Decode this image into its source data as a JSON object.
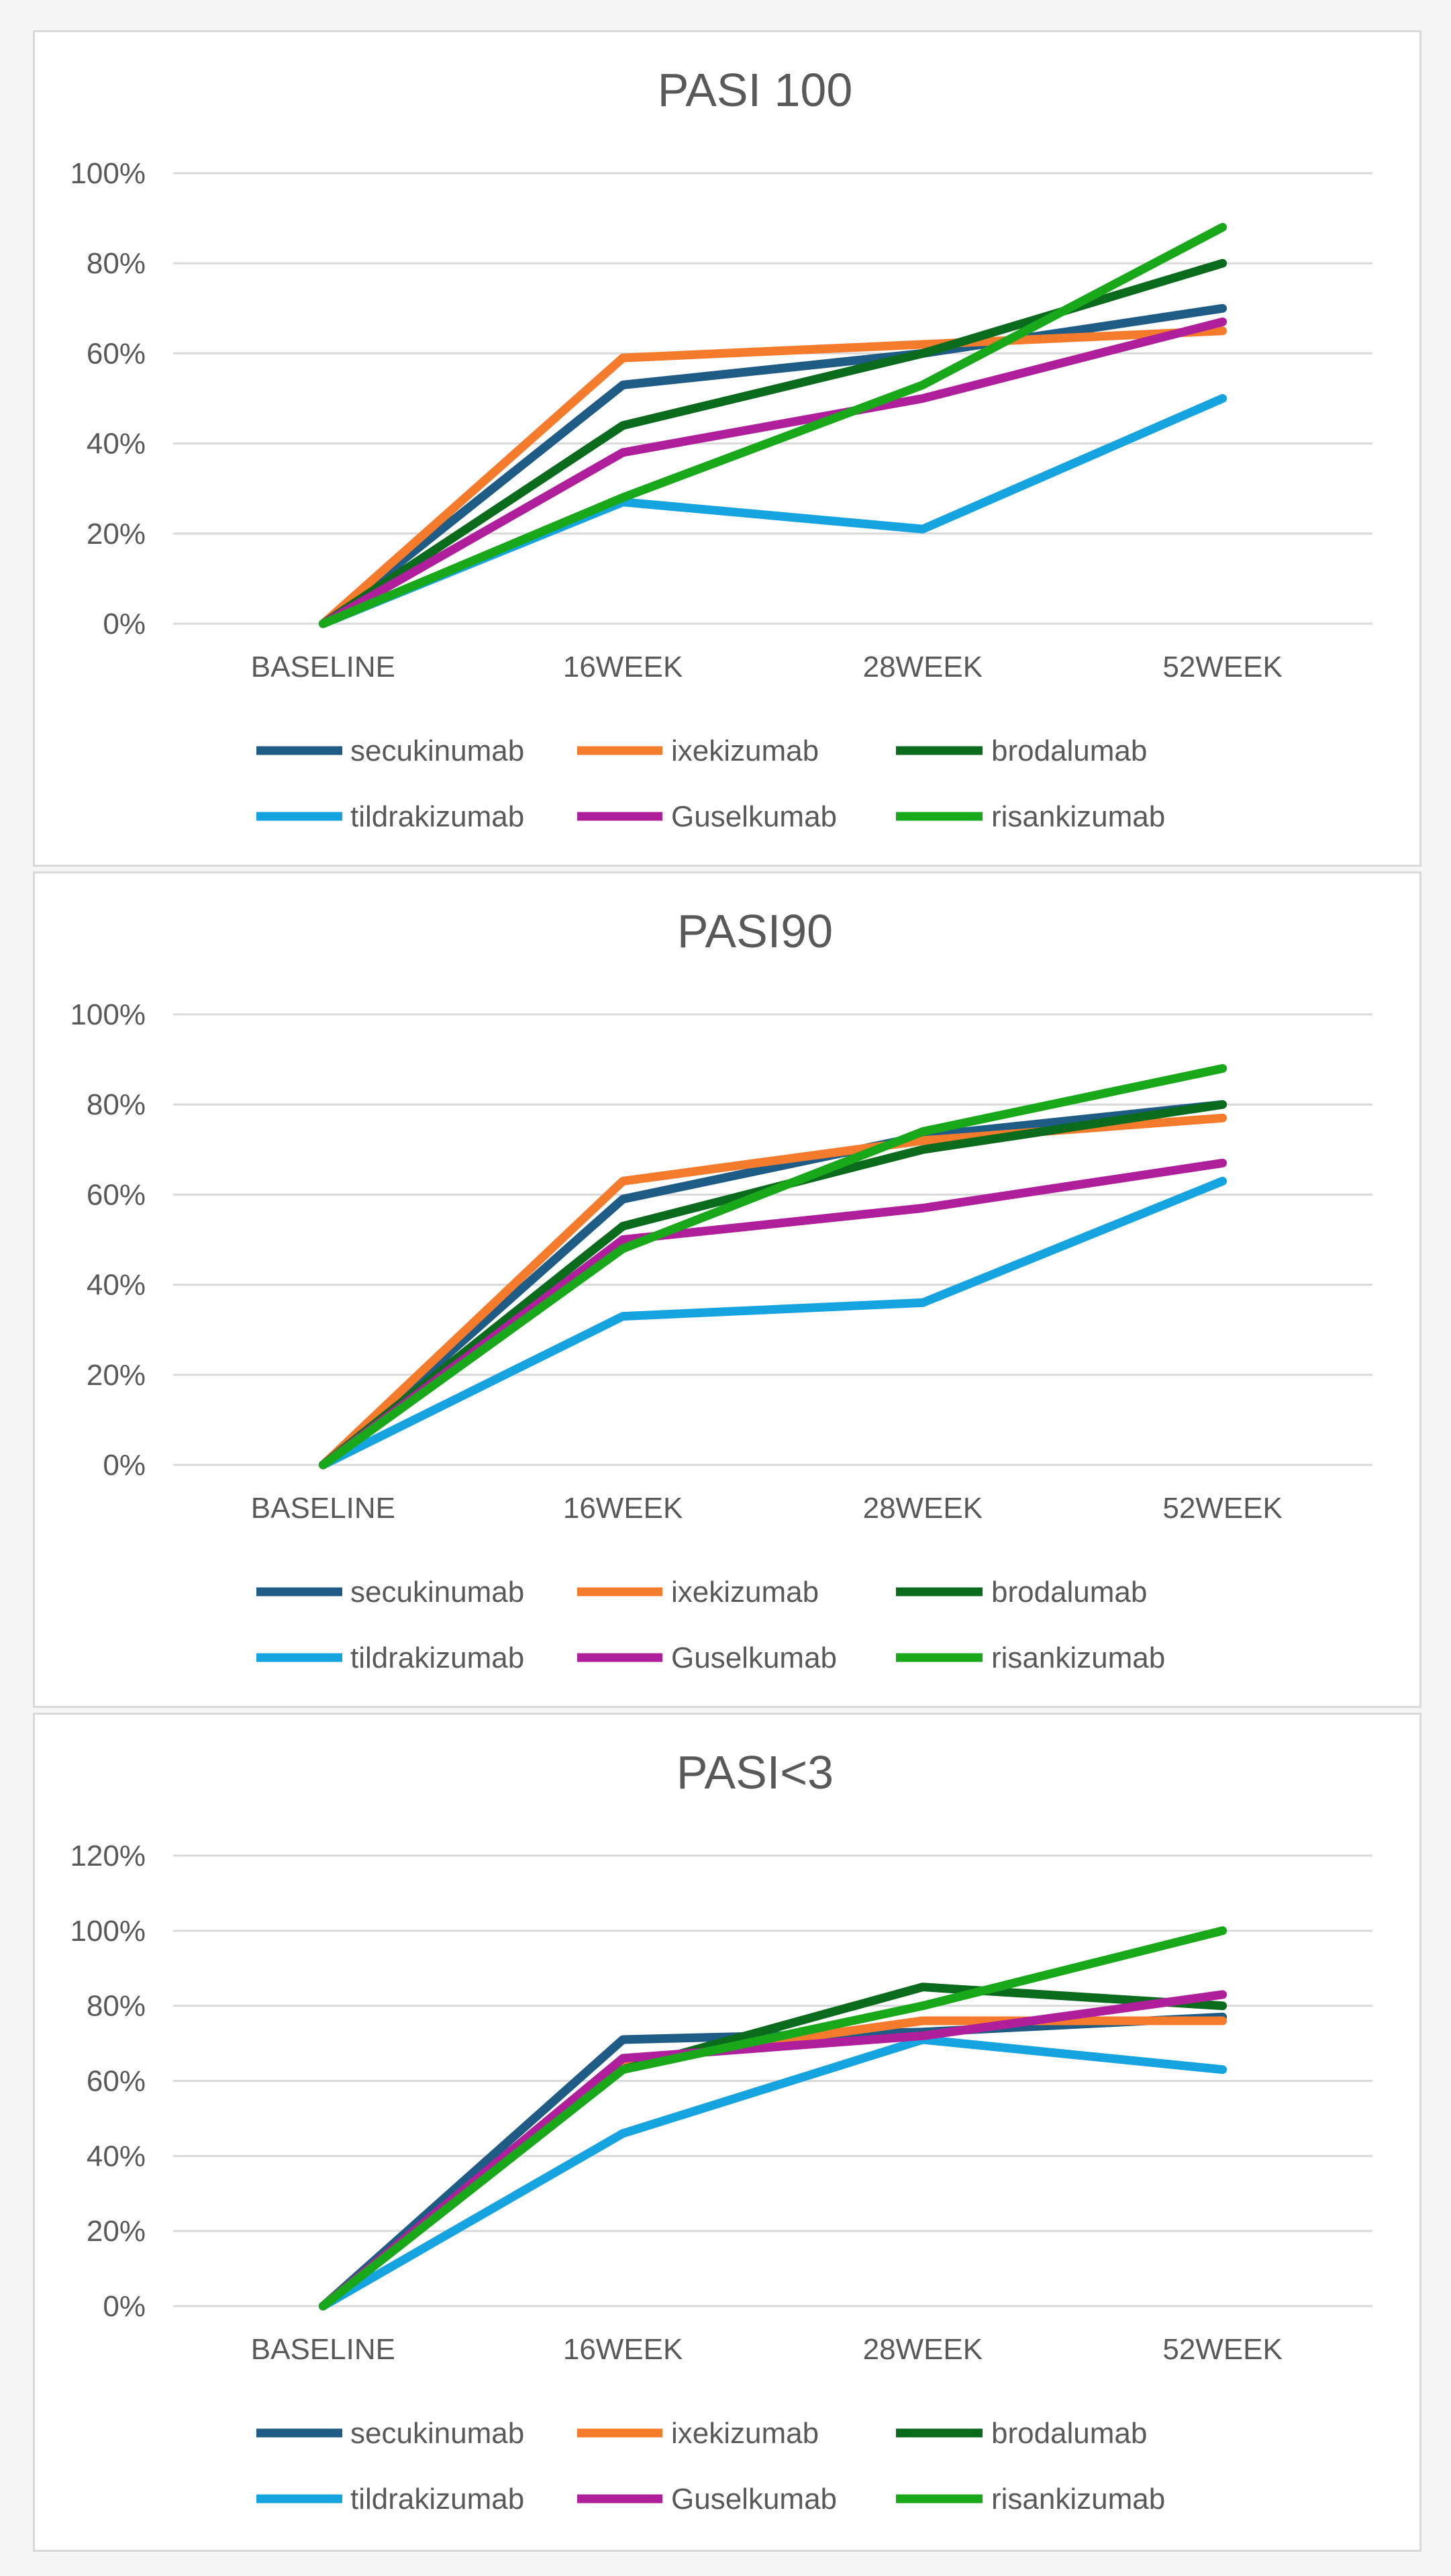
{
  "chart_data": [
    {
      "type": "line",
      "title": "PASI 100",
      "xlabel": "",
      "ylabel": "",
      "categories": [
        "BASELINE",
        "16WEEK",
        "28WEEK",
        "52WEEK"
      ],
      "yticks": [
        "0%",
        "20%",
        "40%",
        "60%",
        "80%",
        "100%"
      ],
      "ylim": [
        0,
        100
      ],
      "grid": true,
      "legend": "bottom",
      "series": [
        {
          "name": "secukinumab",
          "color": "#1f5c85",
          "values": [
            0,
            53,
            60,
            70
          ]
        },
        {
          "name": "ixekizumab",
          "color": "#f47b2c",
          "values": [
            0,
            59,
            62,
            65
          ]
        },
        {
          "name": "brodalumab",
          "color": "#0b6b1c",
          "values": [
            0,
            44,
            60,
            80
          ]
        },
        {
          "name": "tildrakizumab",
          "color": "#16a4e0",
          "values": [
            0,
            27,
            21,
            50
          ]
        },
        {
          "name": "Guselkumab",
          "color": "#b01f9b",
          "values": [
            0,
            38,
            50,
            67
          ]
        },
        {
          "name": "risankizumab",
          "color": "#18a81a",
          "values": [
            0,
            28,
            53,
            88
          ]
        }
      ]
    },
    {
      "type": "line",
      "title": "PASI90",
      "xlabel": "",
      "ylabel": "",
      "categories": [
        "BASELINE",
        "16WEEK",
        "28WEEK",
        "52WEEK"
      ],
      "yticks": [
        "0%",
        "20%",
        "40%",
        "60%",
        "80%",
        "100%"
      ],
      "ylim": [
        0,
        100
      ],
      "grid": true,
      "legend": "bottom",
      "series": [
        {
          "name": "secukinumab",
          "color": "#1f5c85",
          "values": [
            0,
            59,
            73,
            80
          ]
        },
        {
          "name": "ixekizumab",
          "color": "#f47b2c",
          "values": [
            0,
            63,
            72,
            77
          ]
        },
        {
          "name": "brodalumab",
          "color": "#0b6b1c",
          "values": [
            0,
            53,
            70,
            80
          ]
        },
        {
          "name": "tildrakizumab",
          "color": "#16a4e0",
          "values": [
            0,
            33,
            36,
            63
          ]
        },
        {
          "name": "Guselkumab",
          "color": "#b01f9b",
          "values": [
            0,
            50,
            57,
            67
          ]
        },
        {
          "name": "risankizumab",
          "color": "#18a81a",
          "values": [
            0,
            48,
            74,
            88
          ]
        }
      ]
    },
    {
      "type": "line",
      "title": "PASI<3",
      "xlabel": "",
      "ylabel": "",
      "categories": [
        "BASELINE",
        "16WEEK",
        "28WEEK",
        "52WEEK"
      ],
      "yticks": [
        "0%",
        "20%",
        "40%",
        "60%",
        "80%",
        "100%",
        "120%"
      ],
      "ylim": [
        0,
        120
      ],
      "grid": true,
      "legend": "bottom",
      "series": [
        {
          "name": "secukinumab",
          "color": "#1f5c85",
          "values": [
            0,
            71,
            73,
            77
          ]
        },
        {
          "name": "ixekizumab",
          "color": "#f47b2c",
          "values": [
            0,
            65,
            76,
            76
          ]
        },
        {
          "name": "brodalumab",
          "color": "#0b6b1c",
          "values": [
            0,
            63,
            85,
            80
          ]
        },
        {
          "name": "tildrakizumab",
          "color": "#16a4e0",
          "values": [
            0,
            46,
            71,
            63
          ]
        },
        {
          "name": "Guselkumab",
          "color": "#b01f9b",
          "values": [
            0,
            66,
            72,
            83
          ]
        },
        {
          "name": "risankizumab",
          "color": "#18a81a",
          "values": [
            0,
            63,
            80,
            100
          ]
        }
      ]
    }
  ]
}
